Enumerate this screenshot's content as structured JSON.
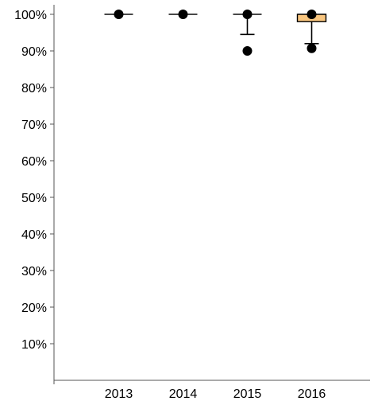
{
  "chart_data": {
    "type": "box",
    "title": "",
    "xlabel": "",
    "ylabel": "",
    "categories": [
      "2013",
      "2014",
      "2015",
      "2016"
    ],
    "ylim": [
      0,
      100
    ],
    "y_tick_values": [
      10,
      20,
      30,
      40,
      50,
      60,
      70,
      80,
      90,
      100
    ],
    "y_tick_labels": [
      "10%",
      "20%",
      "30%",
      "40%",
      "50%",
      "60%",
      "70%",
      "80%",
      "90%",
      "100%"
    ],
    "grid": false,
    "legend": "none",
    "boxes": [
      {
        "category": "2013",
        "q1": 100,
        "median": 100,
        "q3": 100,
        "whisker_low": 100,
        "whisker_high": 100,
        "points": [
          100
        ]
      },
      {
        "category": "2014",
        "q1": 100,
        "median": 100,
        "q3": 100,
        "whisker_low": 100,
        "whisker_high": 100,
        "points": [
          100
        ]
      },
      {
        "category": "2015",
        "q1": 100,
        "median": 100,
        "q3": 100,
        "whisker_low": 94.5,
        "whisker_high": 100,
        "points": [
          100,
          90
        ]
      },
      {
        "category": "2016",
        "q1": 98,
        "median": 100,
        "q3": 100,
        "whisker_low": 92,
        "whisker_high": 100,
        "points": [
          100,
          90.7
        ]
      }
    ],
    "colors": {
      "box_fill": "#f9c67f",
      "line": "#000000",
      "axis": "#555555",
      "point": "#000000"
    }
  }
}
